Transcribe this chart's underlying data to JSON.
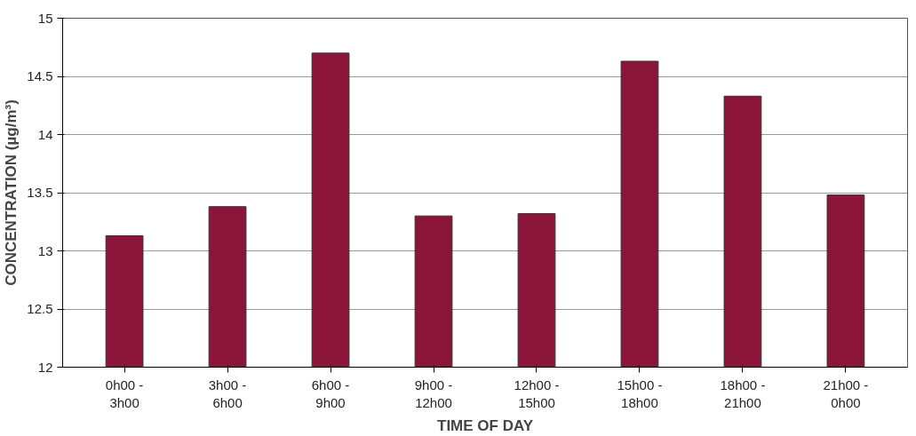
{
  "chart_data": {
    "type": "bar",
    "xlabel": "TIME OF DAY",
    "ylabel": "CONCENTRATION (µg/m³)",
    "categories": [
      "0h00 -\n3h00",
      "3h00 -\n6h00",
      "6h00 -\n9h00",
      "9h00 -\n12h00",
      "12h00 -\n15h00",
      "15h00 -\n18h00",
      "18h00 -\n21h00",
      "21h00 -\n0h00"
    ],
    "values": [
      13.13,
      13.38,
      14.7,
      13.3,
      13.32,
      14.63,
      14.33,
      13.48
    ],
    "color": "#8b1538",
    "ylim": [
      12,
      15
    ],
    "yticks": [
      12,
      12.5,
      13,
      13.5,
      14,
      14.5,
      15
    ],
    "grid": "y"
  }
}
